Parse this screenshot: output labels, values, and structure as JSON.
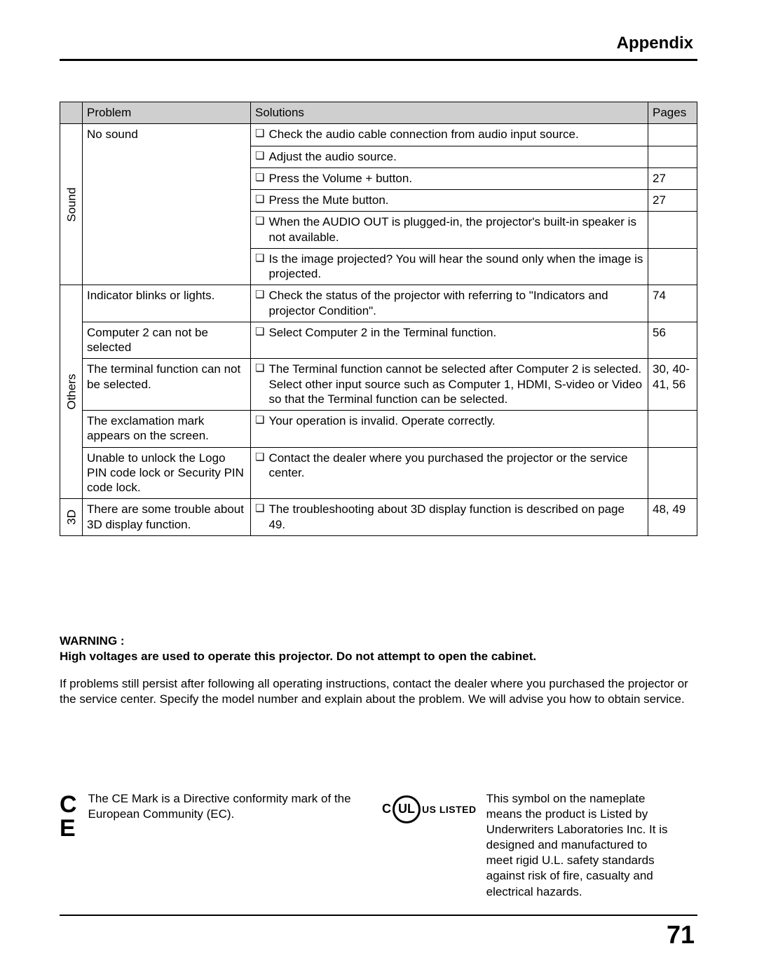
{
  "header": {
    "title": "Appendix"
  },
  "table": {
    "columns": {
      "problem": "Problem",
      "solutions": "Solutions",
      "pages": "Pages"
    },
    "groups": [
      {
        "category": "Sound",
        "rows": [
          {
            "problem": "No sound",
            "solutions": [
              {
                "text": "Check the audio cable connection from audio input source.",
                "pages": ""
              },
              {
                "text": "Adjust the audio source.",
                "pages": ""
              },
              {
                "text": "Press the Volume + button.",
                "pages": "27"
              },
              {
                "text": "Press the Mute button.",
                "pages": "27"
              },
              {
                "text": "When the AUDIO OUT is plugged-in, the projector's built-in speaker is not available.",
                "pages": ""
              },
              {
                "text": "Is the image projected? You will hear the sound only when the image is projected.",
                "pages": ""
              }
            ]
          }
        ]
      },
      {
        "category": "Others",
        "rows": [
          {
            "problem": "Indicator blinks or lights.",
            "solutions": [
              {
                "text": "Check the status of the projector with referring to \"Indicators and projector Condition\".",
                "pages": "74"
              }
            ]
          },
          {
            "problem": "Computer 2 can not be selected",
            "solutions": [
              {
                "text": "Select Computer 2 in the Terminal function.",
                "pages": "56"
              }
            ]
          },
          {
            "problem": "The terminal function can not be selected.",
            "solutions": [
              {
                "text": "The Terminal function cannot be selected after Computer 2 is selected. Select other input source such as Computer 1, HDMI, S-video or Video so that the Terminal function can be selected.",
                "pages": "30, 40-41, 56"
              }
            ]
          },
          {
            "problem": "The exclamation mark appears on the screen.",
            "solutions": [
              {
                "text": "Your operation is invalid. Operate correctly.",
                "pages": ""
              }
            ]
          },
          {
            "problem": "Unable to unlock the Logo PIN code lock or Security PIN code lock.",
            "solutions": [
              {
                "text": "Contact the dealer where you purchased the projector or the service center.",
                "pages": ""
              }
            ]
          }
        ]
      },
      {
        "category": "3D",
        "rows": [
          {
            "problem": "There are some trouble about 3D display function.",
            "solutions": [
              {
                "text": "The troubleshooting about 3D display function is described on page 49.",
                "pages": "48, 49"
              }
            ]
          }
        ]
      }
    ]
  },
  "warning": {
    "heading": "WARNING :",
    "bold_line": "High voltages are used to operate this projector. Do not attempt to open the cabinet.",
    "body": "If problems still persist after following all operating instructions, contact the dealer where you purchased the projector or the service center. Specify the model number and explain about the problem. We will advise you how to obtain service."
  },
  "marks": {
    "ce_text": "The CE Mark is a Directive conformity mark of the European Community (EC).",
    "ul_text": "This symbol on the nameplate means the product is Listed by Underwriters Laboratories Inc. It is designed and manufactured to meet rigid U.L. safety standards against risk of fire, casualty and electrical hazards.",
    "ul_label_c": "C",
    "ul_label_ul": "UL",
    "ul_label_us": "US LISTED"
  },
  "footer": {
    "page_number": "71"
  },
  "checkbox_glyph": "❏"
}
